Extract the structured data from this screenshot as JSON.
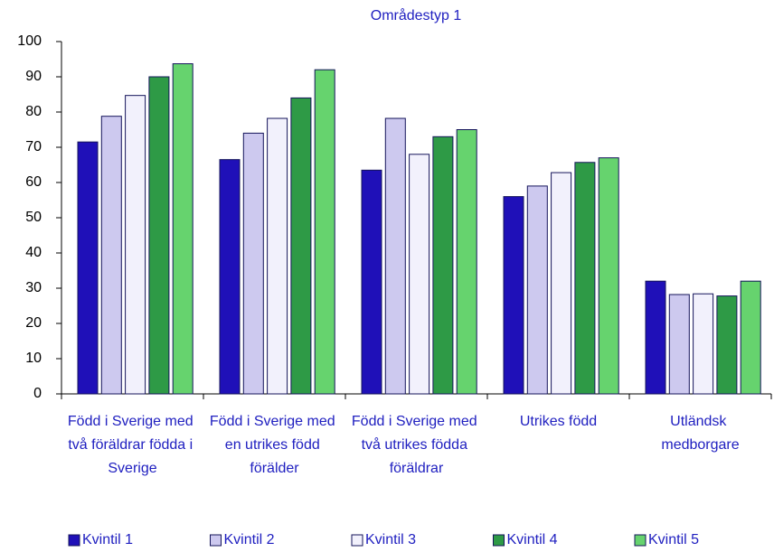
{
  "chart_data": {
    "type": "bar",
    "subtitle": "Områdestyp 1",
    "categories": [
      "Född i Sverige med två föräldrar födda i Sverige",
      "Född i Sverige med en utrikes född förälder",
      "Född i Sverige med två utrikes födda föräldrar",
      "Utrikes född",
      "Utländsk medborgare"
    ],
    "series": [
      {
        "name": "Kvintil 1",
        "color": "#1f10b8",
        "values": [
          71.5,
          66.5,
          63.5,
          56,
          32
        ]
      },
      {
        "name": "Kvintil 2",
        "color": "#cdc9ef",
        "values": [
          78.8,
          74,
          78.2,
          59,
          28.2
        ]
      },
      {
        "name": "Kvintil 3",
        "color": "#f2f1fc",
        "values": [
          84.7,
          78.2,
          68,
          62.8,
          28.4
        ]
      },
      {
        "name": "Kvintil 4",
        "color": "#2e9a46",
        "values": [
          90,
          84,
          73,
          65.7,
          27.8
        ]
      },
      {
        "name": "Kvintil 5",
        "color": "#66d36e",
        "values": [
          93.7,
          92,
          75,
          67,
          32
        ]
      }
    ],
    "ylim": [
      0,
      100
    ],
    "yticks": [
      0,
      10,
      20,
      30,
      40,
      50,
      60,
      70,
      80,
      90,
      100
    ],
    "legend": "bottom"
  }
}
